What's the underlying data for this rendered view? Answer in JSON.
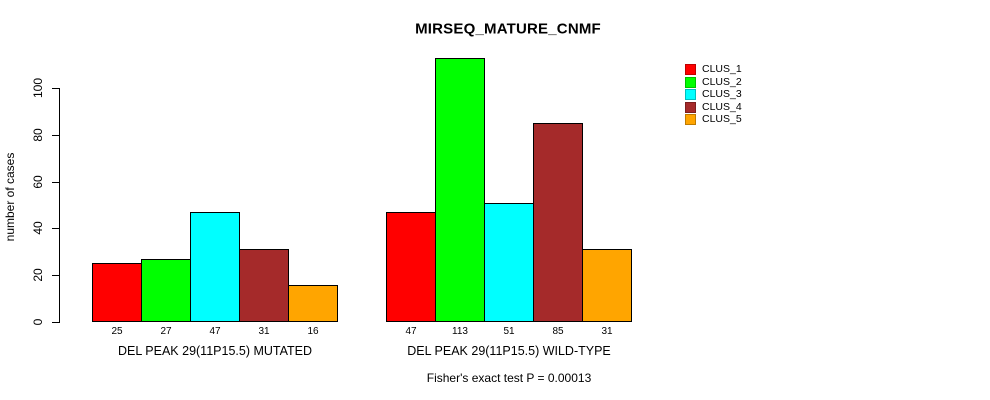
{
  "chart_data": {
    "type": "bar",
    "title": "MIRSEQ_MATURE_CNMF",
    "ylabel": "number of cases",
    "xlabel": "",
    "categories": [
      "DEL PEAK 29(11P15.5) MUTATED",
      "DEL PEAK 29(11P15.5) WILD-TYPE"
    ],
    "series": [
      {
        "name": "CLUS_1",
        "color": "#FF0000",
        "values": [
          25,
          47
        ]
      },
      {
        "name": "CLUS_2",
        "color": "#00FF00",
        "values": [
          27,
          113
        ]
      },
      {
        "name": "CLUS_3",
        "color": "#00FFFF",
        "values": [
          47,
          51
        ]
      },
      {
        "name": "CLUS_4",
        "color": "#A52A2A",
        "values": [
          31,
          85
        ]
      },
      {
        "name": "CLUS_5",
        "color": "#FFA500",
        "values": [
          16,
          31
        ]
      }
    ],
    "bar_value_labels": [
      [
        25,
        27,
        47,
        31,
        16
      ],
      [
        47,
        113,
        51,
        85,
        31
      ]
    ],
    "yticks": [
      0,
      20,
      40,
      60,
      80,
      100
    ],
    "ylim": [
      0,
      113
    ],
    "grid": false,
    "legend_position": "top-right",
    "annotation": "Fisher's exact test P = 0.00013"
  }
}
